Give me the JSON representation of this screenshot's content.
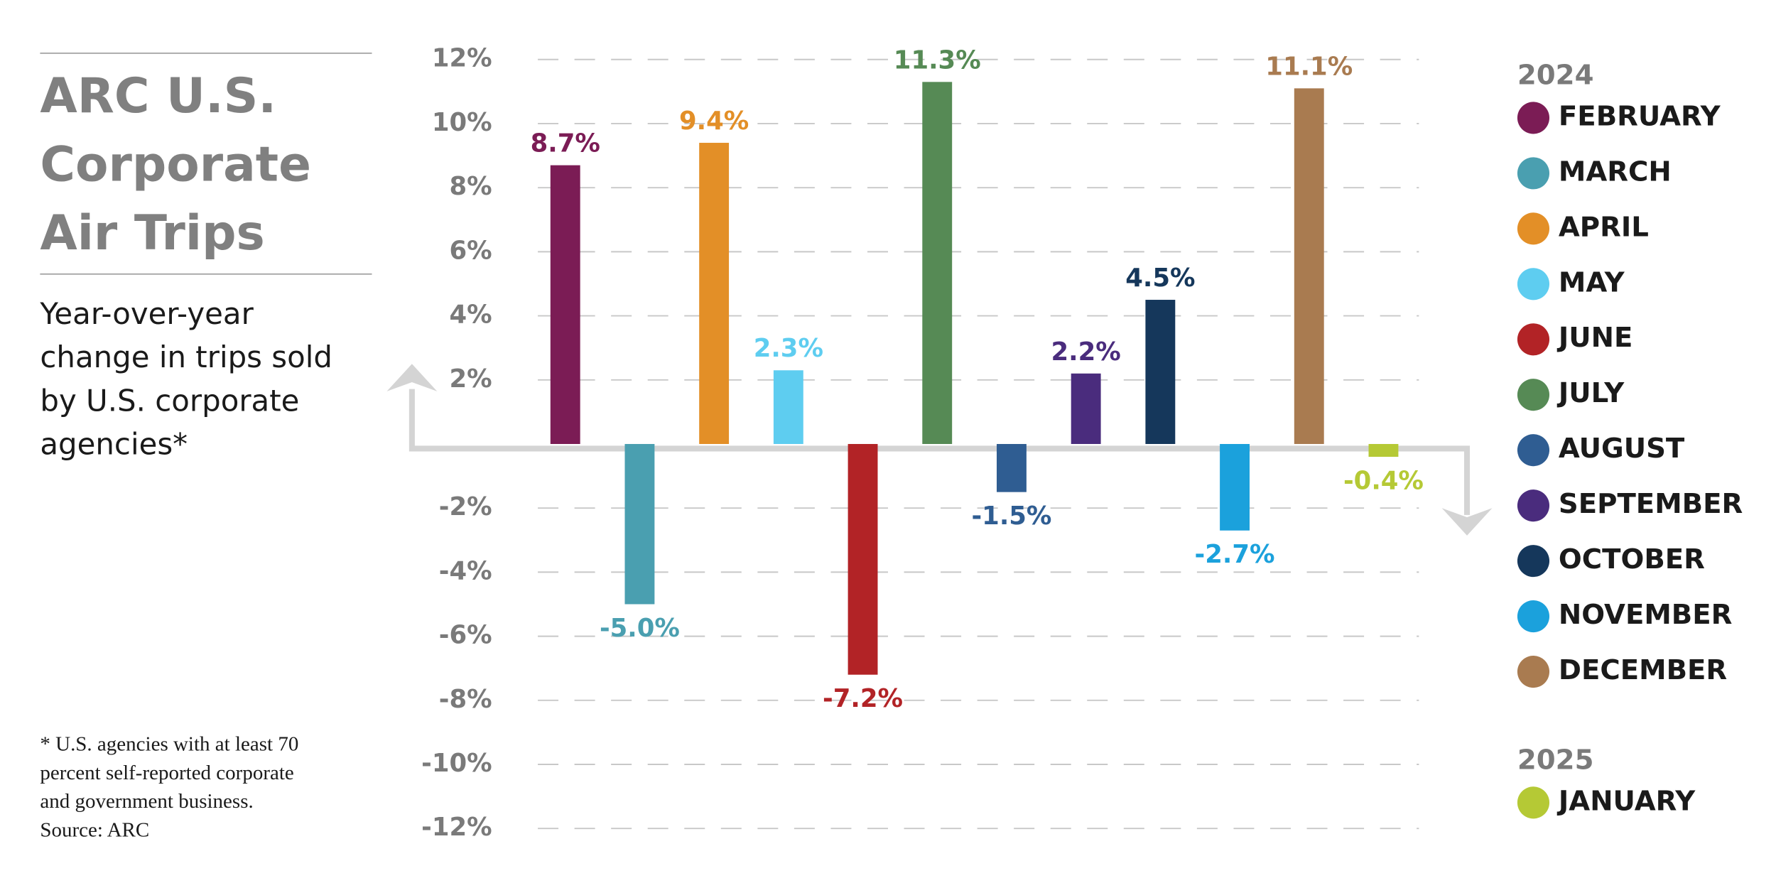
{
  "chart_data": {
    "type": "bar",
    "title": "ARC U.S. Corporate Air Trips",
    "subtitle": "Year-over-year change in trips sold by U.S. corporate agencies*",
    "note": "* U.S. agencies with at least 70 percent self-reported corporate and government business. Source: ARC",
    "ylim": [
      -12,
      12
    ],
    "yticks": [
      {
        "value": 12,
        "label": "12%"
      },
      {
        "value": 10,
        "label": "10%"
      },
      {
        "value": 8,
        "label": "8%"
      },
      {
        "value": 6,
        "label": "6%"
      },
      {
        "value": 4,
        "label": "4%"
      },
      {
        "value": 2,
        "label": "2%"
      },
      {
        "value": -2,
        "label": "-2%"
      },
      {
        "value": -4,
        "label": "-4%"
      },
      {
        "value": -6,
        "label": "-6%"
      },
      {
        "value": -8,
        "label": "-8%"
      },
      {
        "value": -10,
        "label": "-10%"
      },
      {
        "value": -12,
        "label": "-12%"
      }
    ],
    "grid": true,
    "series": [
      {
        "name": "2024",
        "categories": [
          "FEBRUARY",
          "MARCH",
          "APRIL",
          "MAY",
          "JUNE",
          "JULY",
          "AUGUST",
          "SEPTEMBER",
          "OCTOBER",
          "NOVEMBER",
          "DECEMBER"
        ],
        "values": [
          8.7,
          -5.0,
          9.4,
          2.3,
          -7.2,
          11.3,
          -1.5,
          2.2,
          4.5,
          -2.7,
          11.1
        ],
        "value_labels": [
          "8.7%",
          "-5.0%",
          "9.4%",
          "2.3%",
          "-7.2%",
          "11.3%",
          "-1.5%",
          "2.2%",
          "4.5%",
          "-2.7%",
          "11.1%"
        ],
        "colors": [
          "#7b1c55",
          "#4a9fb0",
          "#e38f27",
          "#5ecdf0",
          "#b22326",
          "#568a55",
          "#2f5d92",
          "#4a2c7d",
          "#15375b",
          "#1ba1dc",
          "#a97b50"
        ]
      },
      {
        "name": "2025",
        "categories": [
          "JANUARY"
        ],
        "values": [
          -0.4
        ],
        "value_labels": [
          "-0.4%"
        ],
        "colors": [
          "#b5c935"
        ]
      }
    ]
  }
}
